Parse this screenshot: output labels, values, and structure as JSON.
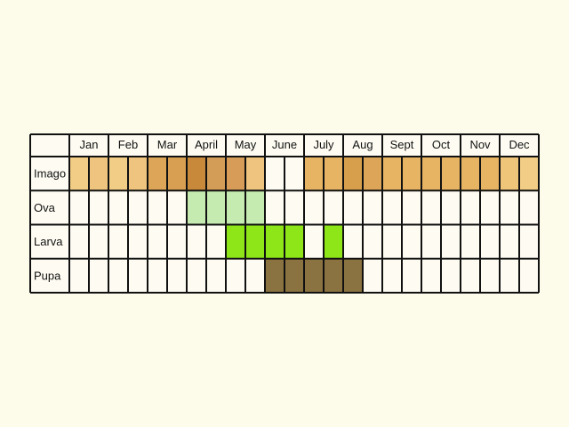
{
  "months": [
    "Jan",
    "Feb",
    "Mar",
    "April",
    "May",
    "June",
    "July",
    "Aug",
    "Sept",
    "Oct",
    "Nov",
    "Dec"
  ],
  "stages": [
    {
      "label": "Imago",
      "fills": [
        [
          0,
          0,
          "#f2cd85"
        ],
        [
          0,
          1,
          "#eec47e"
        ],
        [
          1,
          0,
          "#f2cd85"
        ],
        [
          1,
          1,
          "#eec47e"
        ],
        [
          2,
          0,
          "#dca557"
        ],
        [
          2,
          1,
          "#d89f52"
        ],
        [
          3,
          0,
          "#c88a3a"
        ],
        [
          3,
          1,
          "#d39d58"
        ],
        [
          4,
          0,
          "#d79d58"
        ],
        [
          4,
          1,
          "#eec47e"
        ],
        [
          6,
          0,
          "#e6b463"
        ],
        [
          6,
          1,
          "#e6b463"
        ],
        [
          7,
          0,
          "#d79f4c"
        ],
        [
          7,
          1,
          "#dca557"
        ],
        [
          8,
          0,
          "#e6b463"
        ],
        [
          8,
          1,
          "#e6b463"
        ],
        [
          9,
          0,
          "#e6b463"
        ],
        [
          9,
          1,
          "#e6b463"
        ],
        [
          10,
          0,
          "#e6b463"
        ],
        [
          10,
          1,
          "#e6b463"
        ],
        [
          11,
          0,
          "#efc57a"
        ],
        [
          11,
          1,
          "#f2cd85"
        ]
      ]
    },
    {
      "label": "Ova",
      "fills": [
        [
          3,
          0,
          "#c6ebb1"
        ],
        [
          3,
          1,
          "#c6ebb1"
        ],
        [
          4,
          0,
          "#c6ebb1"
        ],
        [
          4,
          1,
          "#c6ebb1"
        ]
      ]
    },
    {
      "label": "Larva",
      "fills": [
        [
          4,
          0,
          "#8ee618"
        ],
        [
          4,
          1,
          "#8ee618"
        ],
        [
          5,
          0,
          "#8ee618"
        ],
        [
          5,
          1,
          "#8ee618"
        ],
        [
          6,
          1,
          "#8ee618"
        ]
      ]
    },
    {
      "label": "Pupa",
      "fills": [
        [
          5,
          0,
          "#8a7340"
        ],
        [
          5,
          1,
          "#8a7340"
        ],
        [
          6,
          0,
          "#8a7340"
        ],
        [
          6,
          1,
          "#8a7340"
        ],
        [
          7,
          0,
          "#8a7340"
        ]
      ]
    }
  ],
  "colors": {
    "background": "#fdfbe9",
    "cell": "#fefcf2",
    "grid": "#111111"
  }
}
